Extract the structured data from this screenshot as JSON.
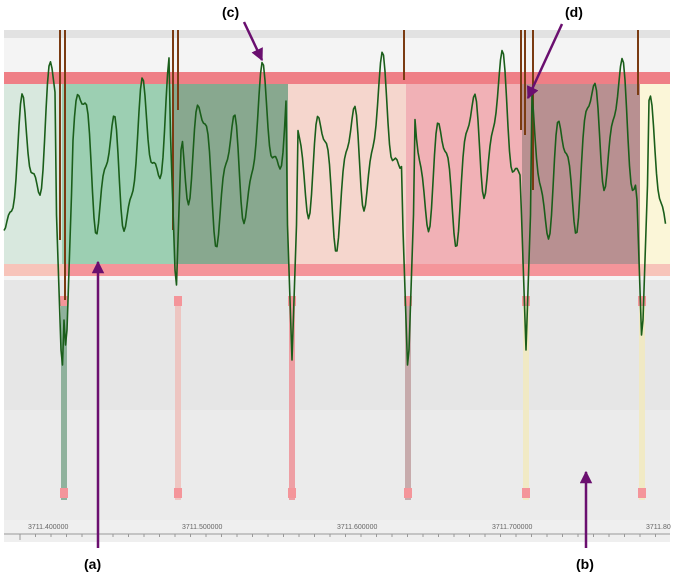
{
  "callouts": {
    "a": "(a)",
    "b": "(b)",
    "c": "(c)",
    "d": "(d)"
  },
  "axis": {
    "tick_labels": [
      "3711.400000",
      "3711.500000",
      "3711.600000",
      "3711.700000",
      "3711.80"
    ]
  },
  "colors": {
    "trace": "#1a5e1a",
    "spike": "#7a3b12",
    "arrow": "#6a0f6f",
    "band_red": "#ef7f86",
    "band_pink": "#f7c4ba",
    "green_fill": "#9ccfb2",
    "dark_green_fill": "#88a88f",
    "light_pink_fill": "#f5d6cd",
    "pink_fill": "#f1b1b6",
    "mauve_fill": "#b89091",
    "yellow_fill": "#fbf6d8",
    "lower_panel": "#e6e6e6"
  }
}
